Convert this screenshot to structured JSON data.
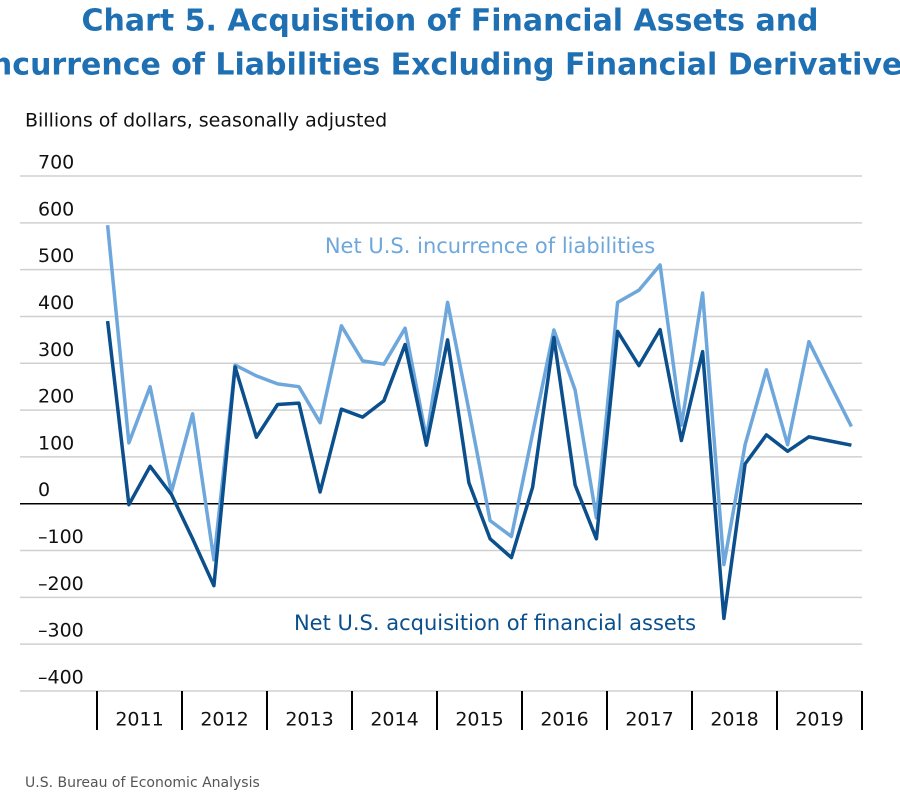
{
  "chart_data": {
    "type": "line",
    "title": [
      "Chart 5. Acquisition of Financial Assets and",
      "Incurrence of Liabilities Excluding Financial Derivatives"
    ],
    "subtitle": "Billions of dollars, seasonally adjusted",
    "source": "U.S. Bureau of Economic Analysis",
    "categories": [
      "2011",
      null,
      null,
      null,
      "2012",
      null,
      null,
      null,
      "2013",
      null,
      null,
      null,
      "2014",
      null,
      null,
      null,
      "2015",
      null,
      null,
      null,
      "2016",
      null,
      null,
      null,
      "2017",
      null,
      null,
      null,
      "2018",
      null,
      null,
      null,
      "2019",
      null,
      null,
      null
    ],
    "series": [
      {
        "name": "Net U.S. incurrence of liabilities",
        "color": "#6ea7dc",
        "values": [
          595,
          130,
          250,
          25,
          192,
          -120,
          296,
          273,
          256,
          250,
          173,
          380,
          305,
          298,
          375,
          140,
          430,
          200,
          -36,
          -70,
          150,
          371,
          243,
          -30,
          430,
          456,
          510,
          168,
          450,
          -130,
          126,
          286,
          126,
          346,
          255,
          165
        ]
      },
      {
        "name": "Net U.S. acquisition of financial assets",
        "color": "#0b4f8c",
        "values": [
          390,
          -2,
          80,
          20,
          -75,
          -175,
          292,
          142,
          212,
          215,
          25,
          202,
          185,
          220,
          340,
          125,
          350,
          45,
          -75,
          -115,
          35,
          355,
          40,
          -75,
          368,
          295,
          372,
          135,
          325,
          -245,
          85,
          147,
          112,
          143,
          134,
          125
        ]
      }
    ],
    "ylim": [
      -400,
      700
    ],
    "yticks": [
      {
        "value": -400,
        "label": "–400"
      },
      {
        "value": -300,
        "label": "–300"
      },
      {
        "value": -200,
        "label": "–200"
      },
      {
        "value": -100,
        "label": "–100"
      },
      0,
      100,
      200,
      300,
      400,
      500,
      600,
      700
    ],
    "grid": true
  }
}
